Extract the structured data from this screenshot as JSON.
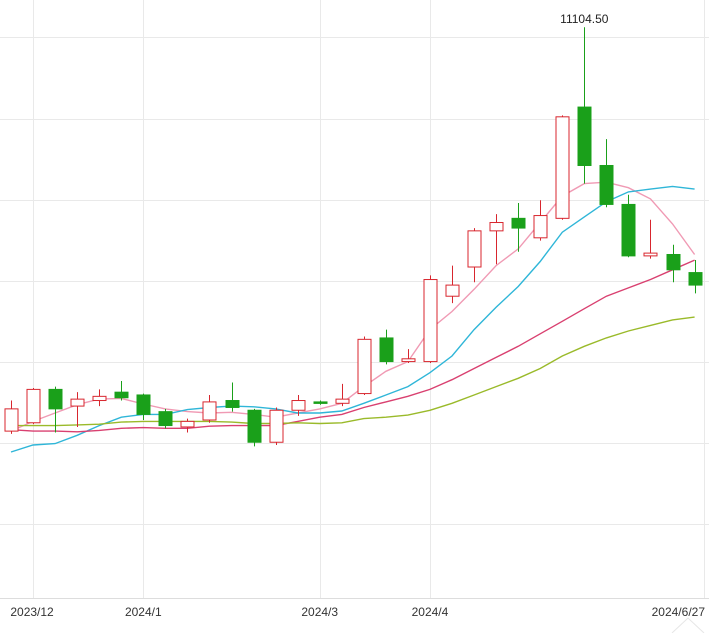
{
  "chart_data": {
    "type": "candlestick",
    "title": "",
    "xlabel": "",
    "ylabel": "",
    "ylim": [
      7000,
      11300
    ],
    "grid": true,
    "x_tick_labels": [
      {
        "label": "2023/12",
        "index": 1
      },
      {
        "label": "2024/1",
        "index": 6
      },
      {
        "label": "2024/3",
        "index": 14
      },
      {
        "label": "2024/4",
        "index": 19
      },
      {
        "label": "2024/6/27",
        "index": 31
      }
    ],
    "annotations": [
      {
        "text": "11104.50",
        "index": 26,
        "value": 11104.5
      }
    ],
    "candles": [
      {
        "index": 0,
        "open": 8200,
        "close": 8360,
        "high": 8420,
        "low": 8180
      },
      {
        "index": 1,
        "open": 8260,
        "close": 8500,
        "high": 8510,
        "low": 8250
      },
      {
        "index": 2,
        "open": 8500,
        "close": 8360,
        "high": 8520,
        "low": 8190
      },
      {
        "index": 3,
        "open": 8380,
        "close": 8430,
        "high": 8480,
        "low": 8230
      },
      {
        "index": 4,
        "open": 8420,
        "close": 8450,
        "high": 8500,
        "low": 8380
      },
      {
        "index": 5,
        "open": 8480,
        "close": 8440,
        "high": 8560,
        "low": 8420
      },
      {
        "index": 6,
        "open": 8460,
        "close": 8320,
        "high": 8470,
        "low": 8280
      },
      {
        "index": 7,
        "open": 8340,
        "close": 8240,
        "high": 8360,
        "low": 8220
      },
      {
        "index": 8,
        "open": 8230,
        "close": 8270,
        "high": 8290,
        "low": 8190
      },
      {
        "index": 9,
        "open": 8280,
        "close": 8410,
        "high": 8460,
        "low": 8260
      },
      {
        "index": 10,
        "open": 8420,
        "close": 8370,
        "high": 8550,
        "low": 8340
      },
      {
        "index": 11,
        "open": 8350,
        "close": 8120,
        "high": 8360,
        "low": 8090
      },
      {
        "index": 12,
        "open": 8120,
        "close": 8350,
        "high": 8370,
        "low": 8100
      },
      {
        "index": 13,
        "open": 8350,
        "close": 8420,
        "high": 8460,
        "low": 8310
      },
      {
        "index": 14,
        "open": 8410,
        "close": 8400,
        "high": 8420,
        "low": 8390
      },
      {
        "index": 15,
        "open": 8400,
        "close": 8430,
        "high": 8540,
        "low": 8380
      },
      {
        "index": 16,
        "open": 8470,
        "close": 8860,
        "high": 8880,
        "low": 8460
      },
      {
        "index": 17,
        "open": 8870,
        "close": 8700,
        "high": 8930,
        "low": 8680
      },
      {
        "index": 18,
        "open": 8700,
        "close": 8720,
        "high": 8790,
        "low": 8690
      },
      {
        "index": 19,
        "open": 8700,
        "close": 9290,
        "high": 9320,
        "low": 8690
      },
      {
        "index": 20,
        "open": 9170,
        "close": 9250,
        "high": 9390,
        "low": 9120
      },
      {
        "index": 21,
        "open": 9380,
        "close": 9640,
        "high": 9660,
        "low": 9270
      },
      {
        "index": 22,
        "open": 9640,
        "close": 9700,
        "high": 9760,
        "low": 9400
      },
      {
        "index": 23,
        "open": 9730,
        "close": 9660,
        "high": 9840,
        "low": 9490
      },
      {
        "index": 24,
        "open": 9590,
        "close": 9750,
        "high": 9860,
        "low": 9570
      },
      {
        "index": 25,
        "open": 9730,
        "close": 10460,
        "high": 10470,
        "low": 9720
      },
      {
        "index": 26,
        "open": 10530,
        "close": 10110,
        "high": 11104.5,
        "low": 9980
      },
      {
        "index": 27,
        "open": 10110,
        "close": 9830,
        "high": 10300,
        "low": 9810
      },
      {
        "index": 28,
        "open": 9830,
        "close": 9460,
        "high": 9900,
        "low": 9450
      },
      {
        "index": 29,
        "open": 9460,
        "close": 9480,
        "high": 9720,
        "low": 9440
      },
      {
        "index": 30,
        "open": 9470,
        "close": 9360,
        "high": 9540,
        "low": 9270
      },
      {
        "index": 31,
        "open": 9340,
        "close": 9250,
        "high": 9430,
        "low": 9190
      }
    ],
    "series": [
      {
        "color": "#f09ab4",
        "points": [
          [
            0,
            8200
          ],
          [
            1,
            8270
          ],
          [
            2,
            8330
          ],
          [
            3,
            8390
          ],
          [
            4,
            8430
          ],
          [
            5,
            8435
          ],
          [
            6,
            8395
          ],
          [
            7,
            8360
          ],
          [
            8,
            8340
          ],
          [
            9,
            8330
          ],
          [
            10,
            8335
          ],
          [
            11,
            8320
          ],
          [
            12,
            8300
          ],
          [
            13,
            8330
          ],
          [
            14,
            8360
          ],
          [
            15,
            8400
          ],
          [
            16,
            8520
          ],
          [
            17,
            8630
          ],
          [
            18,
            8700
          ],
          [
            19,
            8930
          ],
          [
            20,
            9060
          ],
          [
            21,
            9220
          ],
          [
            22,
            9390
          ],
          [
            23,
            9510
          ],
          [
            24,
            9700
          ],
          [
            25,
            9890
          ],
          [
            26,
            9980
          ],
          [
            27,
            9990
          ],
          [
            28,
            9950
          ],
          [
            29,
            9870
          ],
          [
            30,
            9690
          ],
          [
            31,
            9470
          ]
        ]
      },
      {
        "color": "#2fb6d8",
        "points": [
          [
            0,
            8050
          ],
          [
            1,
            8100
          ],
          [
            2,
            8110
          ],
          [
            3,
            8170
          ],
          [
            4,
            8240
          ],
          [
            5,
            8300
          ],
          [
            6,
            8320
          ],
          [
            7,
            8320
          ],
          [
            8,
            8355
          ],
          [
            9,
            8370
          ],
          [
            10,
            8380
          ],
          [
            11,
            8375
          ],
          [
            12,
            8360
          ],
          [
            13,
            8330
          ],
          [
            14,
            8330
          ],
          [
            15,
            8345
          ],
          [
            16,
            8400
          ],
          [
            17,
            8460
          ],
          [
            18,
            8520
          ],
          [
            19,
            8620
          ],
          [
            20,
            8740
          ],
          [
            21,
            8930
          ],
          [
            22,
            9090
          ],
          [
            23,
            9240
          ],
          [
            24,
            9420
          ],
          [
            25,
            9630
          ],
          [
            26,
            9740
          ],
          [
            27,
            9850
          ],
          [
            28,
            9920
          ],
          [
            29,
            9940
          ],
          [
            30,
            9960
          ],
          [
            31,
            9940
          ]
        ]
      },
      {
        "color": "#d94070",
        "points": [
          [
            0,
            8210
          ],
          [
            1,
            8200
          ],
          [
            2,
            8200
          ],
          [
            3,
            8195
          ],
          [
            4,
            8205
          ],
          [
            5,
            8220
          ],
          [
            6,
            8225
          ],
          [
            7,
            8220
          ],
          [
            8,
            8220
          ],
          [
            9,
            8235
          ],
          [
            10,
            8240
          ],
          [
            11,
            8240
          ],
          [
            12,
            8240
          ],
          [
            13,
            8270
          ],
          [
            14,
            8300
          ],
          [
            15,
            8320
          ],
          [
            16,
            8370
          ],
          [
            17,
            8410
          ],
          [
            18,
            8450
          ],
          [
            19,
            8500
          ],
          [
            20,
            8570
          ],
          [
            21,
            8650
          ],
          [
            22,
            8730
          ],
          [
            23,
            8810
          ],
          [
            24,
            8900
          ],
          [
            25,
            8990
          ],
          [
            26,
            9080
          ],
          [
            27,
            9170
          ],
          [
            28,
            9230
          ],
          [
            29,
            9290
          ],
          [
            30,
            9360
          ],
          [
            31,
            9430
          ]
        ]
      },
      {
        "color": "#9aba2a",
        "points": [
          [
            0,
            8240
          ],
          [
            1,
            8240
          ],
          [
            2,
            8240
          ],
          [
            3,
            8245
          ],
          [
            4,
            8250
          ],
          [
            5,
            8265
          ],
          [
            6,
            8270
          ],
          [
            7,
            8270
          ],
          [
            8,
            8270
          ],
          [
            9,
            8270
          ],
          [
            10,
            8265
          ],
          [
            11,
            8255
          ],
          [
            12,
            8255
          ],
          [
            13,
            8260
          ],
          [
            14,
            8255
          ],
          [
            15,
            8260
          ],
          [
            16,
            8290
          ],
          [
            17,
            8300
          ],
          [
            18,
            8315
          ],
          [
            19,
            8350
          ],
          [
            20,
            8400
          ],
          [
            21,
            8460
          ],
          [
            22,
            8520
          ],
          [
            23,
            8580
          ],
          [
            24,
            8650
          ],
          [
            25,
            8740
          ],
          [
            26,
            8810
          ],
          [
            27,
            8870
          ],
          [
            28,
            8920
          ],
          [
            29,
            8960
          ],
          [
            30,
            9000
          ],
          [
            31,
            9020
          ]
        ]
      }
    ]
  }
}
